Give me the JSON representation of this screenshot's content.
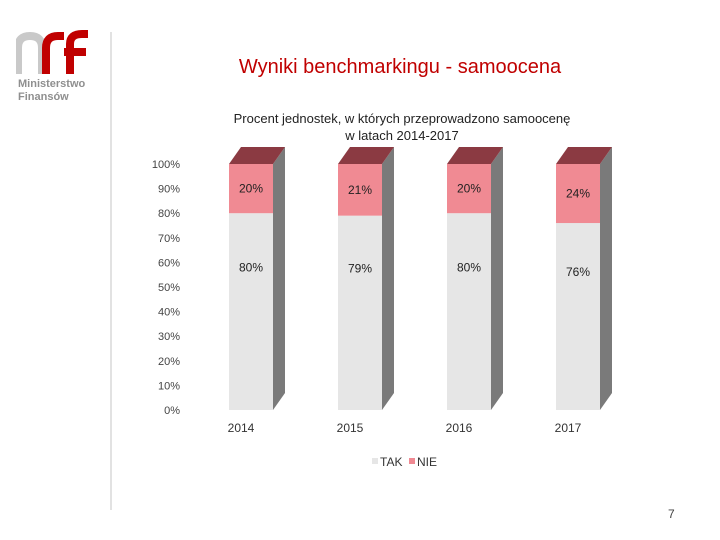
{
  "slide": {
    "logo_line1": "Ministerstwo",
    "logo_line2": "Finansów",
    "title": "Wyniki benchmarkingu - samoocena",
    "page_number": "7"
  },
  "colors": {
    "accent": "#c00000",
    "tak": "#e6e6e6",
    "nie": "#f08a93"
  },
  "chart_data": {
    "type": "bar",
    "stacked": true,
    "title_line1": "Procent jednostek, w których przeprowadzono samoocenę",
    "title_line2": "w latach 2014-2017",
    "categories": [
      "2014",
      "2015",
      "2016",
      "2017"
    ],
    "series": [
      {
        "name": "TAK",
        "values": [
          80,
          79,
          80,
          76
        ],
        "labels": [
          "80%",
          "79%",
          "80%",
          "76%"
        ]
      },
      {
        "name": "NIE",
        "values": [
          20,
          21,
          20,
          24
        ],
        "labels": [
          "20%",
          "21%",
          "20%",
          "24%"
        ]
      }
    ],
    "ylim": [
      0,
      100
    ],
    "yticks": [
      "0%",
      "10%",
      "20%",
      "30%",
      "40%",
      "50%",
      "60%",
      "70%",
      "80%",
      "90%",
      "100%"
    ],
    "legend": [
      "TAK",
      "NIE"
    ],
    "legend_position": "bottom"
  }
}
